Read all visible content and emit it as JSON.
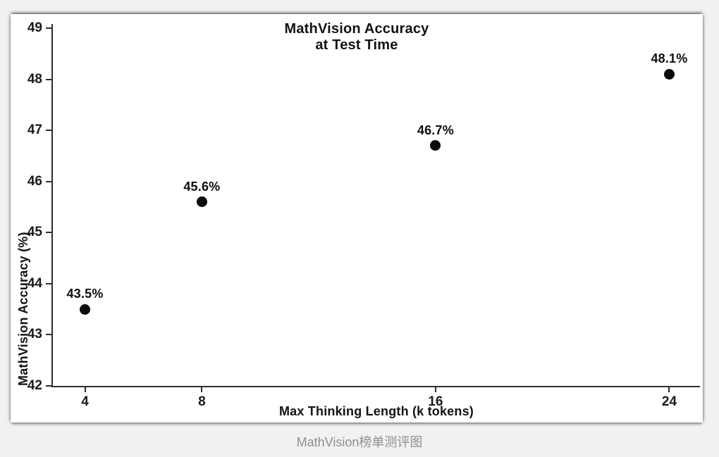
{
  "page": {
    "background_color": "#f1f1f1",
    "panel_color": "#ffffff"
  },
  "caption": {
    "text": "MathVision榜单测评图",
    "color": "#8f8f8f"
  },
  "chart_data": {
    "type": "scatter",
    "title_lines": [
      "MathVision Accuracy",
      "at Test Time"
    ],
    "xlabel": "Max Thinking Length (k tokens)",
    "ylabel": "MathVision Accuracy (%)",
    "x": [
      4,
      8,
      16,
      24
    ],
    "y": [
      43.5,
      45.6,
      46.7,
      48.1
    ],
    "point_labels": [
      "43.5%",
      "45.6%",
      "46.7%",
      "48.1%"
    ],
    "x_ticks": [
      4,
      8,
      16,
      24
    ],
    "y_ticks": [
      42,
      43,
      44,
      45,
      46,
      47,
      48,
      49
    ],
    "xlim": [
      2.9,
      25.05
    ],
    "ylim": [
      42,
      49
    ],
    "grid": false,
    "legend": null,
    "marker_color": "#0b0b0b",
    "axis_color": "#2e2e2e",
    "text_color": "#131313"
  }
}
